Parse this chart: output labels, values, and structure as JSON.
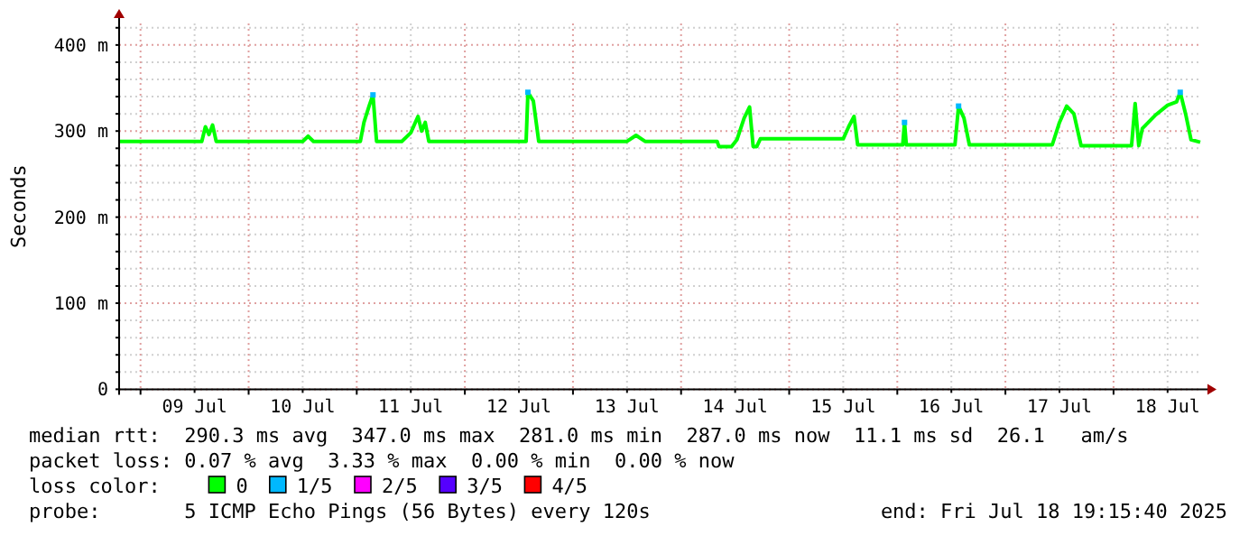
{
  "chart_data": {
    "type": "line",
    "ylabel": "Seconds",
    "legend_title": "loss color:",
    "legend": "bottom",
    "grid": true,
    "marker": "none",
    "line_style": "solid",
    "xlim": [
      "2025-07-08T19:15",
      "2025-07-18T19:15"
    ],
    "xticks": [
      {
        "value": "2025-07-09T00:00",
        "label": null
      },
      {
        "value": "2025-07-09T12:00",
        "label": "09 Jul"
      },
      {
        "value": "2025-07-10T00:00",
        "label": null
      },
      {
        "value": "2025-07-10T12:00",
        "label": "10 Jul"
      },
      {
        "value": "2025-07-11T00:00",
        "label": null
      },
      {
        "value": "2025-07-11T12:00",
        "label": "11 Jul"
      },
      {
        "value": "2025-07-12T00:00",
        "label": null
      },
      {
        "value": "2025-07-12T12:00",
        "label": "12 Jul"
      },
      {
        "value": "2025-07-13T00:00",
        "label": null
      },
      {
        "value": "2025-07-13T12:00",
        "label": "13 Jul"
      },
      {
        "value": "2025-07-14T00:00",
        "label": null
      },
      {
        "value": "2025-07-14T12:00",
        "label": "14 Jul"
      },
      {
        "value": "2025-07-15T00:00",
        "label": null
      },
      {
        "value": "2025-07-15T12:00",
        "label": "15 Jul"
      },
      {
        "value": "2025-07-16T00:00",
        "label": null
      },
      {
        "value": "2025-07-16T12:00",
        "label": "16 Jul"
      },
      {
        "value": "2025-07-17T00:00",
        "label": null
      },
      {
        "value": "2025-07-17T12:00",
        "label": "17 Jul"
      },
      {
        "value": "2025-07-18T00:00",
        "label": null
      },
      {
        "value": "2025-07-18T12:00",
        "label": "18 Jul"
      }
    ],
    "ylim": [
      0,
      425
    ],
    "yticks": [
      {
        "value": 0,
        "label": "0"
      },
      {
        "value": 20,
        "label": null
      },
      {
        "value": 40,
        "label": null
      },
      {
        "value": 60,
        "label": null
      },
      {
        "value": 80,
        "label": null
      },
      {
        "value": 100,
        "label": "100 m"
      },
      {
        "value": 120,
        "label": null
      },
      {
        "value": 140,
        "label": null
      },
      {
        "value": 160,
        "label": null
      },
      {
        "value": 180,
        "label": null
      },
      {
        "value": 200,
        "label": "200 m"
      },
      {
        "value": 220,
        "label": null
      },
      {
        "value": 240,
        "label": null
      },
      {
        "value": 260,
        "label": null
      },
      {
        "value": 280,
        "label": null
      },
      {
        "value": 300,
        "label": "300 m"
      },
      {
        "value": 320,
        "label": null
      },
      {
        "value": 340,
        "label": null
      },
      {
        "value": 360,
        "label": null
      },
      {
        "value": 380,
        "label": null
      },
      {
        "value": 400,
        "label": "400 m"
      },
      {
        "value": 420,
        "label": null
      }
    ],
    "series": [
      {
        "name": "0",
        "color": "#00ff00",
        "x": [
          "2025-07-08T19:15",
          "2025-07-09T13:36",
          "2025-07-09T14:24",
          "2025-07-09T15:12",
          "2025-07-09T16:00",
          "2025-07-09T16:48",
          "2025-07-10T12:00",
          "2025-07-10T13:12",
          "2025-07-10T14:24",
          "2025-07-11T00:48",
          "2025-07-11T01:36",
          "2025-07-11T02:48",
          "2025-07-11T03:36",
          "2025-07-11T04:24",
          "2025-07-11T10:00",
          "2025-07-11T12:00",
          "2025-07-11T13:36",
          "2025-07-11T14:24",
          "2025-07-11T15:12",
          "2025-07-11T16:00",
          "2025-07-12T13:36",
          "2025-07-12T14:00",
          "2025-07-12T15:12",
          "2025-07-12T16:24",
          "2025-07-13T12:00",
          "2025-07-13T14:00",
          "2025-07-13T16:00",
          "2025-07-14T08:00",
          "2025-07-14T08:24",
          "2025-07-14T11:12",
          "2025-07-14T12:24",
          "2025-07-14T14:00",
          "2025-07-14T15:12",
          "2025-07-14T16:00",
          "2025-07-14T16:48",
          "2025-07-14T17:36",
          "2025-07-15T12:00",
          "2025-07-15T13:12",
          "2025-07-15T14:24",
          "2025-07-15T15:12",
          "2025-07-16T01:12",
          "2025-07-16T01:36",
          "2025-07-16T02:00",
          "2025-07-16T12:48",
          "2025-07-16T13:36",
          "2025-07-16T14:48",
          "2025-07-16T16:00",
          "2025-07-17T10:24",
          "2025-07-17T12:00",
          "2025-07-17T13:36",
          "2025-07-17T15:12",
          "2025-07-17T16:48",
          "2025-07-18T04:00",
          "2025-07-18T04:48",
          "2025-07-18T05:36",
          "2025-07-18T06:24",
          "2025-07-18T09:12",
          "2025-07-18T12:00",
          "2025-07-18T14:00",
          "2025-07-18T14:48",
          "2025-07-18T16:00",
          "2025-07-18T17:12",
          "2025-07-18T19:15"
        ],
        "values": [
          288,
          288,
          305,
          296,
          307,
          288,
          288,
          294,
          288,
          288,
          310,
          330,
          342,
          288,
          288,
          298,
          317,
          300,
          310,
          288,
          288,
          345,
          335,
          288,
          288,
          295,
          288,
          288,
          282,
          282,
          290,
          315,
          328,
          282,
          282,
          291,
          291,
          305,
          317,
          284,
          284,
          310,
          284,
          284,
          329,
          315,
          284,
          284,
          310,
          329,
          320,
          283,
          283,
          332,
          283,
          303,
          318,
          330,
          334,
          345,
          320,
          290,
          287
        ]
      },
      {
        "name": "1/5",
        "color": "#00b8ff",
        "type": "scatter",
        "marker": "square",
        "x": [
          "2025-07-11T03:36",
          "2025-07-12T14:00",
          "2025-07-16T01:36",
          "2025-07-16T13:36",
          "2025-07-18T14:48"
        ],
        "values": [
          342,
          345,
          310,
          329,
          345
        ]
      },
      {
        "name": "2/5",
        "color": "#ff00ff",
        "type": "scatter"
      },
      {
        "name": "3/5",
        "color": "#5500ff",
        "type": "scatter"
      },
      {
        "name": "4/5",
        "color": "#ff0000",
        "type": "scatter"
      }
    ],
    "annotations": [
      "median rtt:  290.3 ms avg  347.0 ms max  281.0 ms min  287.0 ms now  11.1 ms sd  26.1   am/s",
      "packet loss: 0.07 % avg  3.33 % max  0.00 % min  0.00 % now",
      "probe:       5 ICMP Echo Pings (56 Bytes) every 120s",
      "end: Fri Jul 18 19:15:40 2025"
    ]
  }
}
